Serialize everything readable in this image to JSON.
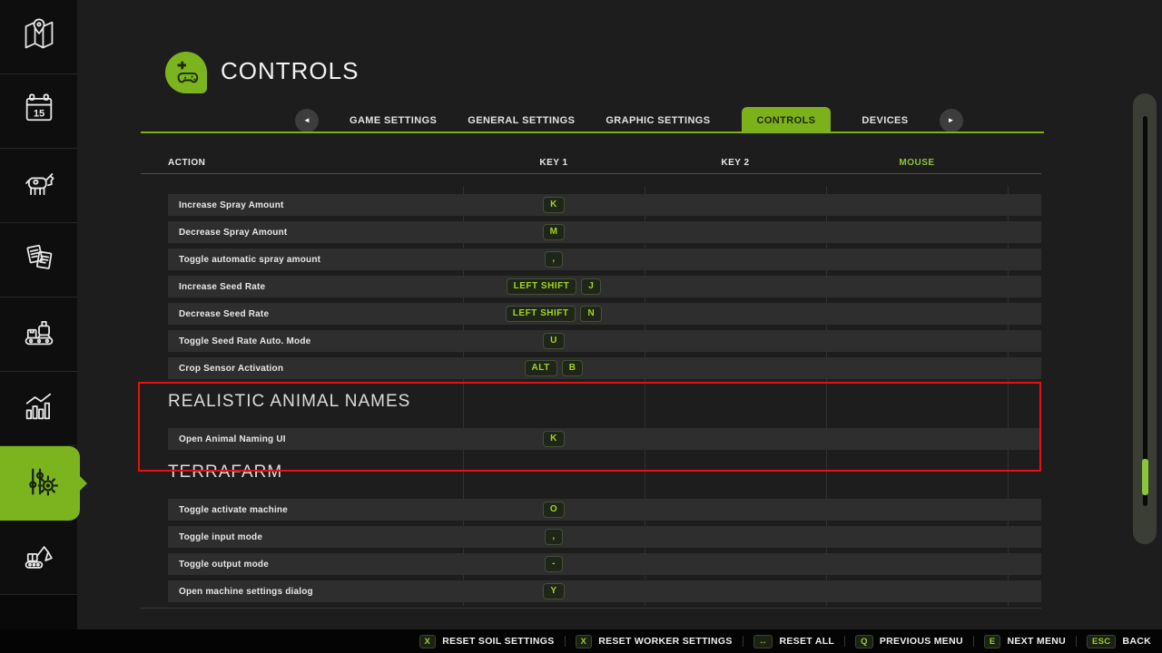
{
  "colors": {
    "accent_green": "#8cc63c",
    "tab_green": "#7db11c",
    "sidebar_active_green": "#7cb41f",
    "highlight_red": "#e51212"
  },
  "header": {
    "title": "CONTROLS",
    "icon": "gamepad-icon"
  },
  "tabs": {
    "prev_arrow": "◄",
    "next_arrow": "►",
    "items": [
      {
        "label": "GAME SETTINGS",
        "active": false
      },
      {
        "label": "GENERAL SETTINGS",
        "active": false
      },
      {
        "label": "GRAPHIC SETTINGS",
        "active": false
      },
      {
        "label": "CONTROLS",
        "active": true
      },
      {
        "label": "DEVICES",
        "active": false
      }
    ]
  },
  "sidebar": {
    "calendar_day": "15",
    "items": [
      {
        "id": "map",
        "icon": "map-icon",
        "active": false
      },
      {
        "id": "calendar",
        "icon": "calendar-icon",
        "active": false
      },
      {
        "id": "animals",
        "icon": "cow-icon",
        "active": false
      },
      {
        "id": "contracts",
        "icon": "documents-icon",
        "active": false
      },
      {
        "id": "production",
        "icon": "production-icon",
        "active": false
      },
      {
        "id": "statistics",
        "icon": "stats-icon",
        "active": false
      },
      {
        "id": "settings",
        "icon": "sliders-gear-icon",
        "active": true
      },
      {
        "id": "construction",
        "icon": "excavator-icon",
        "active": false
      }
    ]
  },
  "table": {
    "headers": {
      "action": "ACTION",
      "key1": "KEY 1",
      "key2": "KEY 2",
      "mouse": "MOUSE"
    },
    "groups": [
      {
        "title": "",
        "rows": [
          {
            "label": "Increase Spray Amount",
            "key1": [
              "K"
            ],
            "key2": [],
            "mouse": []
          },
          {
            "label": "Decrease Spray Amount",
            "key1": [
              "M"
            ],
            "key2": [],
            "mouse": []
          },
          {
            "label": "Toggle automatic spray amount",
            "key1": [
              ","
            ],
            "key2": [],
            "mouse": []
          },
          {
            "label": "Increase Seed Rate",
            "key1": [
              "LEFT SHIFT",
              "J"
            ],
            "key2": [],
            "mouse": []
          },
          {
            "label": "Decrease Seed Rate",
            "key1": [
              "LEFT SHIFT",
              "N"
            ],
            "key2": [],
            "mouse": []
          },
          {
            "label": "Toggle Seed Rate Auto. Mode",
            "key1": [
              "U"
            ],
            "key2": [],
            "mouse": []
          },
          {
            "label": "Crop Sensor Activation",
            "key1": [
              "ALT",
              "B"
            ],
            "key2": [],
            "mouse": []
          }
        ]
      },
      {
        "title": "REALISTIC ANIMAL NAMES",
        "rows": [
          {
            "label": "Open Animal Naming UI",
            "key1": [
              "K"
            ],
            "key2": [],
            "mouse": []
          }
        ]
      },
      {
        "title": "TERRAFARM",
        "rows": [
          {
            "label": "Toggle activate machine",
            "key1": [
              "O"
            ],
            "key2": [],
            "mouse": []
          },
          {
            "label": "Toggle input mode",
            "key1": [
              ","
            ],
            "key2": [],
            "mouse": []
          },
          {
            "label": "Toggle output mode",
            "key1": [
              "-"
            ],
            "key2": [],
            "mouse": []
          },
          {
            "label": "Open machine settings dialog",
            "key1": [
              "Y"
            ],
            "key2": [],
            "mouse": []
          }
        ]
      }
    ]
  },
  "footer": {
    "items": [
      {
        "key": "X",
        "label": "RESET SOIL SETTINGS"
      },
      {
        "key": "X",
        "label": "RESET WORKER SETTINGS"
      },
      {
        "key": "↔",
        "label": "RESET ALL"
      },
      {
        "key": "Q",
        "label": "PREVIOUS MENU"
      },
      {
        "key": "E",
        "label": "NEXT MENU"
      },
      {
        "key": "ESC",
        "label": "BACK"
      }
    ]
  }
}
